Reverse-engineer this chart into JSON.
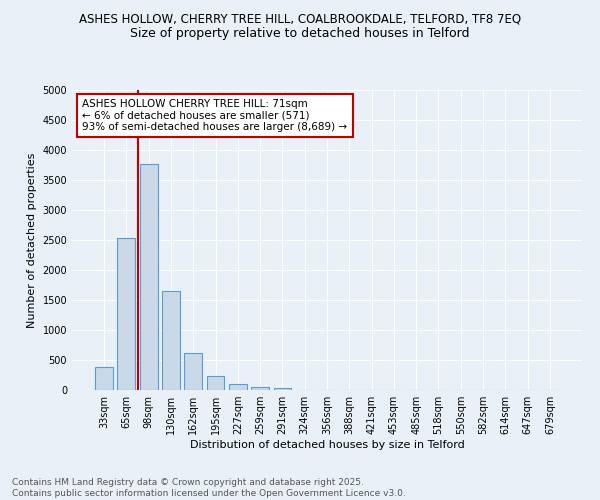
{
  "title1": "ASHES HOLLOW, CHERRY TREE HILL, COALBROOKDALE, TELFORD, TF8 7EQ",
  "title2": "Size of property relative to detached houses in Telford",
  "xlabel": "Distribution of detached houses by size in Telford",
  "ylabel": "Number of detached properties",
  "categories": [
    "33sqm",
    "65sqm",
    "98sqm",
    "130sqm",
    "162sqm",
    "195sqm",
    "227sqm",
    "259sqm",
    "291sqm",
    "324sqm",
    "356sqm",
    "388sqm",
    "421sqm",
    "453sqm",
    "485sqm",
    "518sqm",
    "550sqm",
    "582sqm",
    "614sqm",
    "647sqm",
    "679sqm"
  ],
  "values": [
    380,
    2530,
    3760,
    1650,
    620,
    230,
    100,
    45,
    40,
    0,
    0,
    0,
    0,
    0,
    0,
    0,
    0,
    0,
    0,
    0,
    0
  ],
  "bar_color": "#c9d9e8",
  "bar_edge_color": "#5b9bd5",
  "vline_x": 1.5,
  "vline_color": "#c00000",
  "annotation_text": "ASHES HOLLOW CHERRY TREE HILL: 71sqm\n← 6% of detached houses are smaller (571)\n93% of semi-detached houses are larger (8,689) →",
  "annotation_box_color": "#ffffff",
  "annotation_box_edge": "#c00000",
  "ylim": [
    0,
    5000
  ],
  "yticks": [
    0,
    500,
    1000,
    1500,
    2000,
    2500,
    3000,
    3500,
    4000,
    4500,
    5000
  ],
  "bg_color": "#eaf0f8",
  "plot_bg_color": "#eaf0f8",
  "footer": "Contains HM Land Registry data © Crown copyright and database right 2025.\nContains public sector information licensed under the Open Government Licence v3.0.",
  "title_fontsize": 8.5,
  "subtitle_fontsize": 9,
  "axis_label_fontsize": 8,
  "tick_fontsize": 7,
  "footer_fontsize": 6.5,
  "annot_fontsize": 7.5
}
